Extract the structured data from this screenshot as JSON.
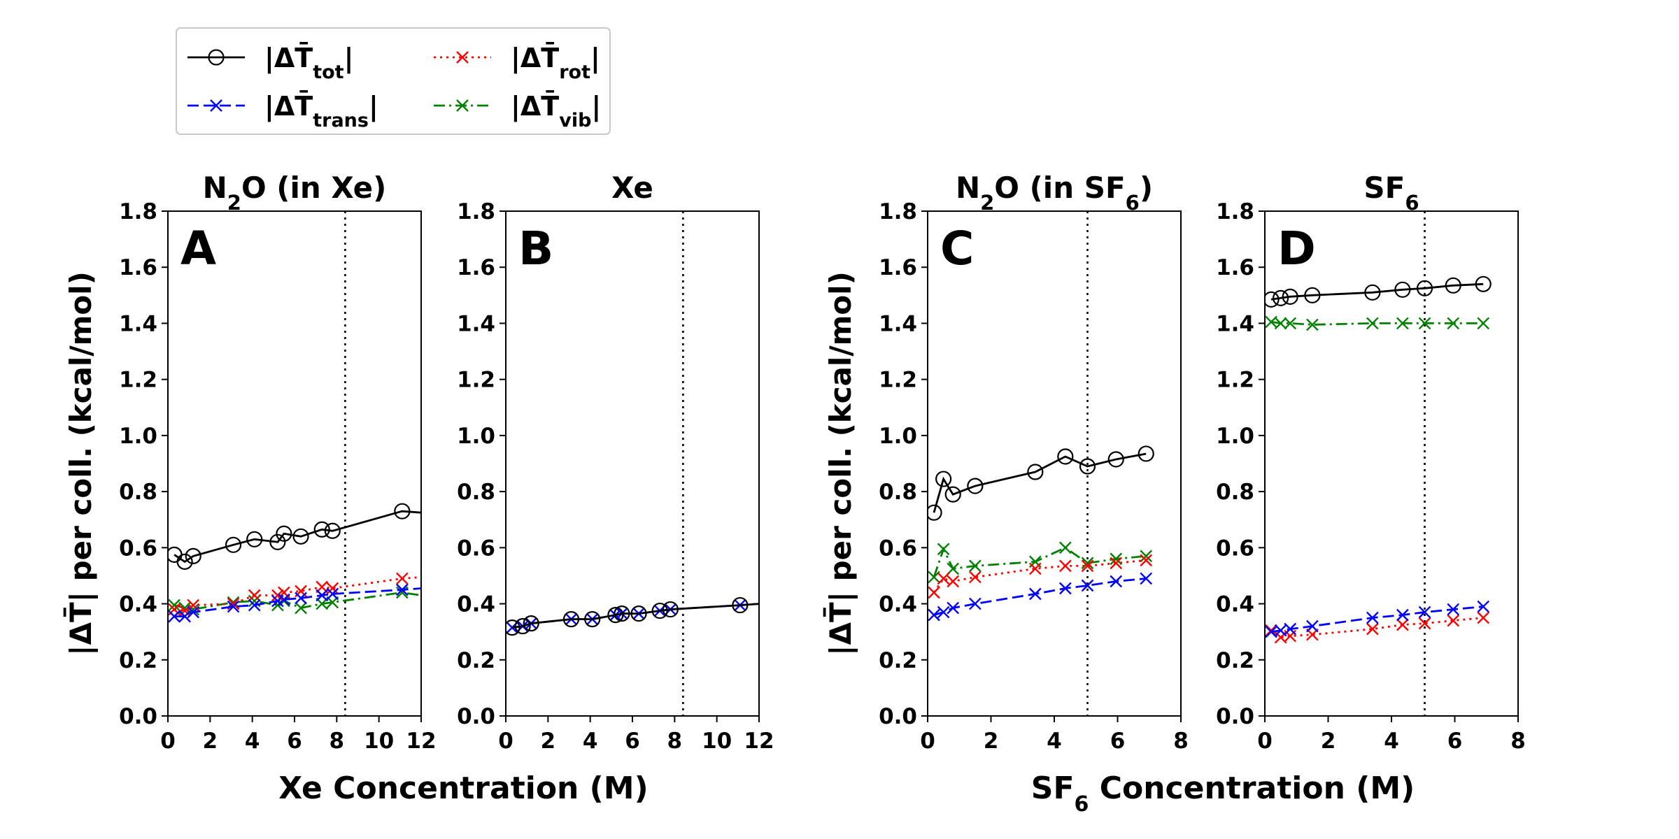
{
  "legend": {
    "position": "top-left",
    "entries": [
      {
        "key": "tot",
        "base": "|ΔT̄",
        "sub": "tot",
        "close": "|",
        "color": "#000000",
        "dash": "solid",
        "marker": "circle"
      },
      {
        "key": "trans",
        "base": "|ΔT̄",
        "sub": "trans",
        "close": "|",
        "color": "#0000ff",
        "dash": "dashed",
        "marker": "x"
      },
      {
        "key": "rot",
        "base": "|ΔT̄",
        "sub": "rot",
        "close": "|",
        "color": "#ff0000",
        "dash": "dotted",
        "marker": "x"
      },
      {
        "key": "vib",
        "base": "|ΔT̄",
        "sub": "vib",
        "close": "|",
        "color": "#008000",
        "dash": "dashdot",
        "marker": "x"
      }
    ]
  },
  "xlabels": [
    {
      "pre": "Xe Concentration (M)",
      "sub": "",
      "post": ""
    },
    {
      "pre": "SF",
      "sub": "6",
      "post": " Concentration (M)"
    }
  ],
  "chart_data": [
    {
      "type": "line",
      "letter": "A",
      "title": {
        "pre": "N",
        "sub": "2",
        "post": "O (in Xe)"
      },
      "ylabel": "|ΔT̄| per coll. (kcal/mol)",
      "xlim": [
        0,
        12
      ],
      "ylim": [
        0,
        1.8
      ],
      "xticks": [
        "0",
        "2",
        "4",
        "6",
        "8",
        "10",
        "12"
      ],
      "yticks": [
        "0.0",
        "0.2",
        "0.4",
        "0.6",
        "0.8",
        "1.0",
        "1.2",
        "1.4",
        "1.6",
        "1.8"
      ],
      "vline": 8.4,
      "series": [
        {
          "key": "tot",
          "x": [
            0.3,
            0.8,
            1.2,
            3.1,
            4.1,
            5.2,
            5.5,
            6.3,
            7.3,
            7.8,
            11.1,
            12.0
          ],
          "y": [
            0.575,
            0.55,
            0.57,
            0.61,
            0.63,
            0.62,
            0.65,
            0.64,
            0.665,
            0.66,
            0.73,
            0.725
          ],
          "markers": 11
        },
        {
          "key": "trans",
          "x": [
            0.3,
            0.8,
            1.2,
            3.1,
            4.1,
            5.2,
            5.5,
            6.3,
            7.3,
            7.8,
            11.1,
            12.0
          ],
          "y": [
            0.355,
            0.355,
            0.37,
            0.39,
            0.395,
            0.41,
            0.415,
            0.42,
            0.43,
            0.435,
            0.45,
            0.455
          ],
          "markers": 11
        },
        {
          "key": "rot",
          "x": [
            0.3,
            0.8,
            1.2,
            3.1,
            4.1,
            5.2,
            5.5,
            6.3,
            7.3,
            7.8,
            11.1,
            12.0
          ],
          "y": [
            0.38,
            0.375,
            0.395,
            0.4,
            0.43,
            0.43,
            0.44,
            0.445,
            0.46,
            0.455,
            0.49,
            0.495
          ],
          "markers": 11
        },
        {
          "key": "vib",
          "x": [
            0.3,
            0.8,
            1.2,
            3.1,
            4.1,
            5.2,
            5.5,
            6.3,
            7.3,
            7.8,
            11.1,
            12.0
          ],
          "y": [
            0.395,
            0.385,
            0.38,
            0.405,
            0.41,
            0.395,
            0.41,
            0.385,
            0.4,
            0.405,
            0.44,
            0.43
          ],
          "markers": 11
        }
      ]
    },
    {
      "type": "line",
      "letter": "B",
      "title": {
        "pre": "Xe",
        "sub": "",
        "post": ""
      },
      "ylabel": "",
      "xlim": [
        0,
        12
      ],
      "ylim": [
        0,
        1.8
      ],
      "xticks": [
        "0",
        "2",
        "4",
        "6",
        "8",
        "10",
        "12"
      ],
      "yticks": [
        "0.0",
        "0.2",
        "0.4",
        "0.6",
        "0.8",
        "1.0",
        "1.2",
        "1.4",
        "1.6",
        "1.8"
      ],
      "vline": 8.4,
      "series": [
        {
          "key": "tot",
          "x": [
            0.3,
            0.8,
            1.2,
            3.1,
            4.1,
            5.2,
            5.5,
            6.3,
            7.3,
            7.8,
            11.1,
            12.0
          ],
          "y": [
            0.315,
            0.32,
            0.33,
            0.345,
            0.345,
            0.36,
            0.365,
            0.365,
            0.375,
            0.38,
            0.395,
            0.4
          ],
          "markers": 11
        },
        {
          "key": "trans",
          "x": [
            0.3,
            0.8,
            1.2,
            3.1,
            4.1,
            5.2,
            5.5,
            6.3,
            7.3,
            7.8,
            11.1,
            12.0
          ],
          "y": [
            0.315,
            0.32,
            0.33,
            0.345,
            0.345,
            0.36,
            0.365,
            0.365,
            0.375,
            0.38,
            0.395,
            0.4
          ],
          "markers": 11
        }
      ]
    },
    {
      "type": "line",
      "letter": "C",
      "title": {
        "pre": "N",
        "sub": "2",
        "post": "O (in SF",
        "sub2": "6",
        "post2": ")"
      },
      "ylabel": "|ΔT̄| per coll. (kcal/mol)",
      "xlim": [
        0,
        8
      ],
      "ylim": [
        0,
        1.8
      ],
      "xticks": [
        "0",
        "2",
        "4",
        "6",
        "8"
      ],
      "yticks": [
        "0.0",
        "0.2",
        "0.4",
        "0.6",
        "0.8",
        "1.0",
        "1.2",
        "1.4",
        "1.6",
        "1.8"
      ],
      "vline": 5.05,
      "series": [
        {
          "key": "tot",
          "x": [
            0.2,
            0.5,
            0.8,
            1.5,
            3.4,
            4.35,
            5.05,
            5.95,
            6.9
          ],
          "y": [
            0.725,
            0.845,
            0.79,
            0.82,
            0.87,
            0.925,
            0.89,
            0.915,
            0.935
          ],
          "markers": 9
        },
        {
          "key": "trans",
          "x": [
            0.2,
            0.5,
            0.8,
            1.5,
            3.4,
            4.35,
            5.05,
            5.95,
            6.9
          ],
          "y": [
            0.36,
            0.37,
            0.385,
            0.4,
            0.435,
            0.455,
            0.465,
            0.48,
            0.49
          ],
          "markers": 9
        },
        {
          "key": "rot",
          "x": [
            0.2,
            0.5,
            0.8,
            1.5,
            3.4,
            4.35,
            5.05,
            5.95,
            6.9
          ],
          "y": [
            0.44,
            0.49,
            0.48,
            0.495,
            0.525,
            0.535,
            0.535,
            0.545,
            0.555
          ],
          "markers": 9
        },
        {
          "key": "vib",
          "x": [
            0.2,
            0.5,
            0.8,
            1.5,
            3.4,
            4.35,
            5.05,
            5.95,
            6.9
          ],
          "y": [
            0.495,
            0.595,
            0.525,
            0.535,
            0.55,
            0.6,
            0.545,
            0.56,
            0.57
          ],
          "markers": 9
        }
      ]
    },
    {
      "type": "line",
      "letter": "D",
      "title": {
        "pre": "SF",
        "sub": "6",
        "post": ""
      },
      "ylabel": "",
      "xlim": [
        0,
        8
      ],
      "ylim": [
        0,
        1.8
      ],
      "xticks": [
        "0",
        "2",
        "4",
        "6",
        "8"
      ],
      "yticks": [
        "0.0",
        "0.2",
        "0.4",
        "0.6",
        "0.8",
        "1.0",
        "1.2",
        "1.4",
        "1.6",
        "1.8"
      ],
      "vline": 5.05,
      "series": [
        {
          "key": "tot",
          "x": [
            0.2,
            0.5,
            0.8,
            1.5,
            3.4,
            4.35,
            5.05,
            5.95,
            6.9
          ],
          "y": [
            1.485,
            1.49,
            1.495,
            1.5,
            1.51,
            1.52,
            1.525,
            1.535,
            1.54
          ],
          "markers": 9
        },
        {
          "key": "trans",
          "x": [
            0.2,
            0.5,
            0.8,
            1.5,
            3.4,
            4.35,
            5.05,
            5.95,
            6.9
          ],
          "y": [
            0.3,
            0.305,
            0.31,
            0.32,
            0.35,
            0.36,
            0.37,
            0.38,
            0.39
          ],
          "markers": 9
        },
        {
          "key": "rot",
          "x": [
            0.2,
            0.5,
            0.8,
            1.5,
            3.4,
            4.35,
            5.05,
            5.95,
            6.9
          ],
          "y": [
            0.305,
            0.28,
            0.285,
            0.29,
            0.31,
            0.325,
            0.33,
            0.34,
            0.35
          ],
          "markers": 9
        },
        {
          "key": "vib",
          "x": [
            0.2,
            0.5,
            0.8,
            1.5,
            3.4,
            4.35,
            5.05,
            5.95,
            6.9
          ],
          "y": [
            1.405,
            1.4,
            1.4,
            1.395,
            1.4,
            1.4,
            1.4,
            1.4,
            1.4
          ],
          "markers": 9
        }
      ]
    }
  ]
}
